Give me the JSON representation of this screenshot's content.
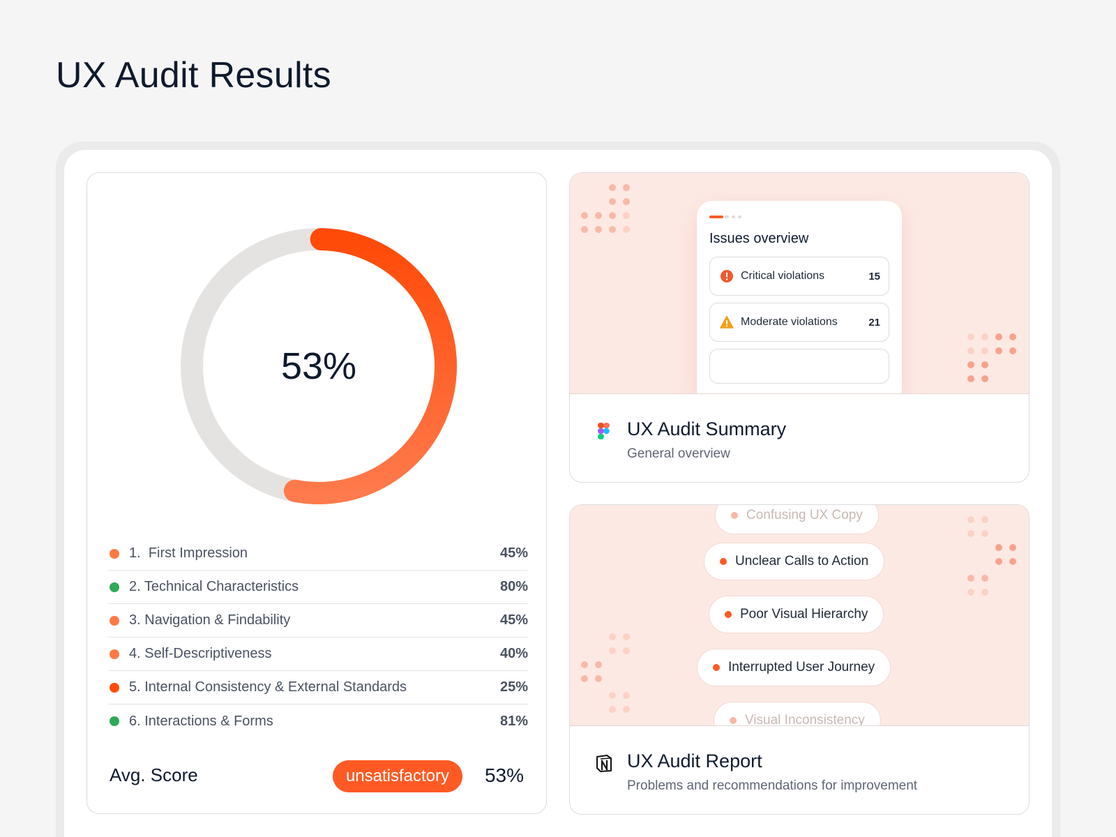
{
  "page": {
    "title": "UX Audit Results"
  },
  "score": {
    "percent_label": "53%",
    "progress": 0.53,
    "categories": [
      {
        "index": "1.",
        "name": "First Impression",
        "value": "45%",
        "status_color": "#ff7a45"
      },
      {
        "index": "2.",
        "name": "Technical Characteristics",
        "value": "80%",
        "status_color": "#2fa85a"
      },
      {
        "index": "3.",
        "name": "Navigation & Findability",
        "value": "45%",
        "status_color": "#ff7a45"
      },
      {
        "index": "4.",
        "name": "Self-Descriptiveness",
        "value": "40%",
        "status_color": "#ff7a45"
      },
      {
        "index": "5.",
        "name": "Internal Consistency & External Standards",
        "value": "25%",
        "status_color": "#ff4d0c"
      },
      {
        "index": "6.",
        "name": "Interactions & Forms",
        "value": "81%",
        "status_color": "#2fa85a"
      }
    ],
    "avg_label": "Avg. Score",
    "avg_badge": "unsatisfactory",
    "avg_value": "53%"
  },
  "summary_card": {
    "icon": "figma-icon",
    "title": "UX Audit Summary",
    "subtitle": "General overview",
    "issues_overview": {
      "title": "Issues overview",
      "items": [
        {
          "label": "Critical violations",
          "count": "15",
          "icon": "error-circle-icon"
        },
        {
          "label": "Moderate violations",
          "count": "21",
          "icon": "warning-triangle-icon"
        }
      ]
    }
  },
  "report_card": {
    "icon": "notion-icon",
    "title": "UX Audit Report",
    "subtitle": "Problems and recommendations for improvement",
    "problems": [
      "Confusing UX Copy",
      "Unclear Calls to Action",
      "Poor Visual Hierarchy",
      "Interrupted User Journey",
      "Visual Inconsistency"
    ]
  },
  "colors": {
    "accent": "#ff5a24",
    "track": "#e5e3e1",
    "preview_bg": "#fde9e4",
    "good": "#2fa85a"
  }
}
